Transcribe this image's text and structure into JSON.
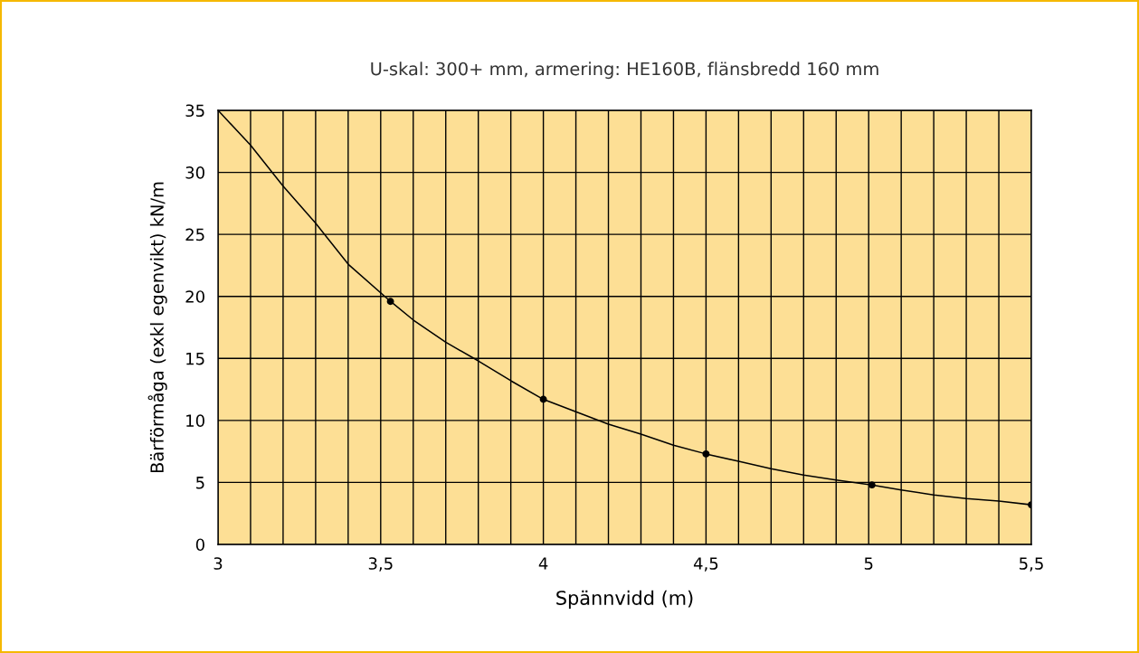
{
  "chart_data": {
    "type": "line",
    "title": "U-skal: 300+ mm, armering: HE160B, flänsbredd 160 mm",
    "xlabel": "Spännvidd (m)",
    "ylabel": "Bärförmåga (exkl egenvikt) kN/m",
    "series": [
      {
        "color": "#000000",
        "marker": "none",
        "x": [
          3.0,
          3.1,
          3.2,
          3.3,
          3.4,
          3.53,
          3.6,
          3.7,
          3.8,
          3.9,
          4.0,
          4.1,
          4.2,
          4.3,
          4.4,
          4.5,
          4.6,
          4.7,
          4.8,
          4.9,
          5.01,
          5.1,
          5.2,
          5.3,
          5.4,
          5.5
        ],
        "values": [
          35,
          32.2,
          28.9,
          25.9,
          22.6,
          19.6,
          18.1,
          16.3,
          14.8,
          13.2,
          11.7,
          10.7,
          9.7,
          8.9,
          8.0,
          7.3,
          6.7,
          6.1,
          5.6,
          5.2,
          4.8,
          4.4,
          4.0,
          3.7,
          3.5,
          3.2
        ]
      },
      {
        "type": "scatter",
        "color": "#000000",
        "marker": "circle",
        "x": [
          3.53,
          4.0,
          4.5,
          5.01,
          5.5
        ],
        "values": [
          19.6,
          11.7,
          7.3,
          4.8,
          3.2
        ]
      }
    ],
    "xlim": [
      3,
      5.5
    ],
    "ylim": [
      0,
      35
    ],
    "xticks": [
      3,
      {
        "value": 3.1,
        "label": null
      },
      {
        "value": 3.2,
        "label": null
      },
      {
        "value": 3.3,
        "label": null
      },
      {
        "value": 3.4,
        "label": null
      },
      {
        "value": 3.5,
        "label": "3,5"
      },
      {
        "value": 3.6,
        "label": null
      },
      {
        "value": 3.7,
        "label": null
      },
      {
        "value": 3.8,
        "label": null
      },
      {
        "value": 3.9,
        "label": null
      },
      4,
      {
        "value": 4.1,
        "label": null
      },
      {
        "value": 4.2,
        "label": null
      },
      {
        "value": 4.3,
        "label": null
      },
      {
        "value": 4.4,
        "label": null
      },
      {
        "value": 4.5,
        "label": "4,5"
      },
      {
        "value": 4.6,
        "label": null
      },
      {
        "value": 4.7,
        "label": null
      },
      {
        "value": 4.8,
        "label": null
      },
      {
        "value": 4.9,
        "label": null
      },
      5,
      {
        "value": 5.1,
        "label": null
      },
      {
        "value": 5.2,
        "label": null
      },
      {
        "value": 5.3,
        "label": null
      },
      {
        "value": 5.4,
        "label": null
      },
      {
        "value": 5.5,
        "label": "5,5"
      }
    ],
    "yticks": [
      0,
      5,
      10,
      15,
      20,
      25,
      30,
      35
    ],
    "grid": true
  }
}
